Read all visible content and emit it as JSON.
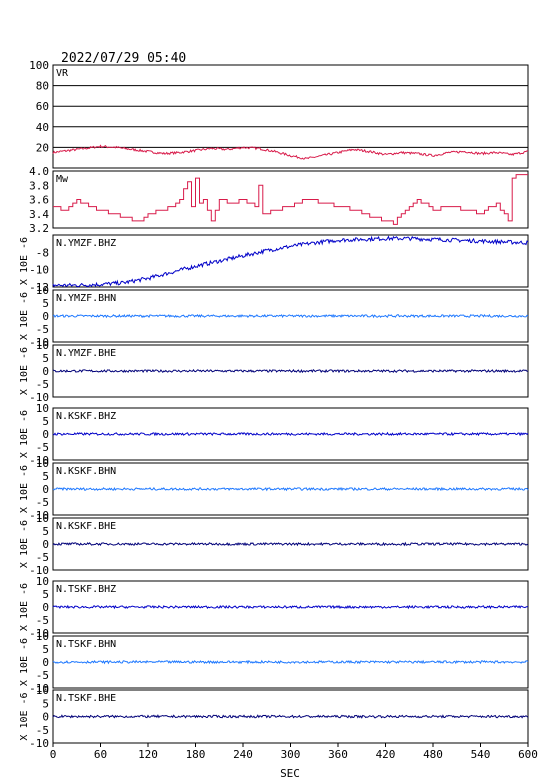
{
  "header": {
    "datetime": "2022/07/29 05:40"
  },
  "colors": {
    "vr": "#d81b4a",
    "mw": "#d81b4a",
    "bhz": "#0000c8",
    "bhn": "#1e78ff",
    "bhe": "#000078",
    "grid": "#000000"
  },
  "chart_data": {
    "type": "line",
    "x_axis": {
      "label": "SEC",
      "range": [
        0,
        600
      ],
      "ticks": [
        "0",
        "60",
        "120",
        "180",
        "240",
        "300",
        "360",
        "420",
        "480",
        "540",
        "600"
      ]
    },
    "panels": [
      {
        "id": "vr",
        "label": "VR",
        "color_key": "vr",
        "ylim": [
          0,
          100
        ],
        "ticks": [
          "100",
          "80",
          "60",
          "40",
          "20"
        ],
        "tick_values": [
          100,
          80,
          60,
          40,
          20
        ],
        "grid": true,
        "ylabel": "",
        "x": [
          0,
          20,
          40,
          60,
          80,
          100,
          120,
          140,
          160,
          180,
          200,
          220,
          240,
          260,
          280,
          300,
          320,
          340,
          360,
          380,
          400,
          420,
          440,
          460,
          480,
          500,
          520,
          540,
          560,
          580,
          600
        ],
        "y": [
          15,
          17,
          19,
          21,
          20,
          18,
          16,
          14,
          15,
          17,
          19,
          18,
          20,
          19,
          16,
          12,
          9,
          12,
          15,
          18,
          16,
          13,
          15,
          14,
          12,
          15,
          16,
          14,
          15,
          13,
          16
        ]
      },
      {
        "id": "mw",
        "label": "Mw",
        "color_key": "mw",
        "ylim": [
          3.2,
          4.0
        ],
        "ticks": [
          "4.0",
          "3.8",
          "3.6",
          "3.4",
          "3.2"
        ],
        "tick_values": [
          4.0,
          3.8,
          3.6,
          3.4,
          3.2
        ],
        "grid": false,
        "ylabel": "",
        "x": [
          0,
          15,
          30,
          45,
          60,
          75,
          90,
          100,
          110,
          120,
          135,
          150,
          160,
          170,
          175,
          180,
          185,
          190,
          200,
          210,
          225,
          240,
          255,
          260,
          265,
          280,
          300,
          320,
          340,
          360,
          380,
          400,
          420,
          430,
          440,
          450,
          460,
          480,
          500,
          520,
          540,
          560,
          575,
          580,
          590,
          600
        ],
        "y": [
          3.5,
          3.45,
          3.6,
          3.5,
          3.45,
          3.4,
          3.35,
          3.3,
          3.3,
          3.4,
          3.45,
          3.5,
          3.6,
          3.85,
          3.5,
          3.9,
          3.55,
          3.6,
          3.3,
          3.6,
          3.55,
          3.6,
          3.5,
          3.8,
          3.4,
          3.45,
          3.5,
          3.6,
          3.55,
          3.5,
          3.45,
          3.35,
          3.3,
          3.25,
          3.4,
          3.5,
          3.6,
          3.45,
          3.5,
          3.45,
          3.4,
          3.55,
          3.3,
          3.9,
          3.95,
          3.95
        ]
      },
      {
        "id": "ymzf-bhz",
        "label": "N.YMZF.BHZ",
        "color_key": "bhz",
        "ylim": [
          -12,
          -6
        ],
        "ticks": [
          "-8",
          "-10",
          "-12"
        ],
        "tick_values": [
          -8,
          -10,
          -12
        ],
        "grid": false,
        "ylabel": "X 10E -6",
        "x": [
          0,
          30,
          60,
          90,
          120,
          150,
          180,
          210,
          240,
          270,
          300,
          330,
          360,
          390,
          420,
          450,
          480,
          510,
          540,
          570,
          600
        ],
        "y": [
          -11.8,
          -11.8,
          -11.7,
          -11.5,
          -11.0,
          -10.3,
          -9.6,
          -9.0,
          -8.4,
          -7.8,
          -7.3,
          -6.9,
          -6.6,
          -6.5,
          -6.4,
          -6.4,
          -6.5,
          -6.6,
          -6.7,
          -6.8,
          -6.9
        ]
      },
      {
        "id": "ymzf-bhn",
        "label": "N.YMZF.BHN",
        "color_key": "bhn",
        "ylim": [
          -10,
          10
        ],
        "ticks": [
          "10",
          "5",
          "0",
          "-5",
          "-10"
        ],
        "tick_values": [
          10,
          5,
          0,
          -5,
          -10
        ],
        "grid": false,
        "ylabel": "X 10E -6",
        "x": [
          0,
          600
        ],
        "y": [
          0,
          0
        ]
      },
      {
        "id": "ymzf-bhe",
        "label": "N.YMZF.BHE",
        "color_key": "bhe",
        "ylim": [
          -10,
          10
        ],
        "ticks": [
          "10",
          "5",
          "0",
          "-5",
          "-10"
        ],
        "tick_values": [
          10,
          5,
          0,
          -5,
          -10
        ],
        "grid": false,
        "ylabel": "X 10E -6",
        "x": [
          0,
          600
        ],
        "y": [
          0,
          0
        ]
      },
      {
        "id": "kskf-bhz",
        "label": "N.KSKF.BHZ",
        "color_key": "bhz",
        "ylim": [
          -10,
          10
        ],
        "ticks": [
          "10",
          "5",
          "0",
          "-5",
          "-10"
        ],
        "tick_values": [
          10,
          5,
          0,
          -5,
          -10
        ],
        "grid": false,
        "ylabel": "X 10E -6",
        "x": [
          0,
          600
        ],
        "y": [
          0,
          0
        ]
      },
      {
        "id": "kskf-bhn",
        "label": "N.KSKF.BHN",
        "color_key": "bhn",
        "ylim": [
          -10,
          10
        ],
        "ticks": [
          "10",
          "5",
          "0",
          "-5",
          "-10"
        ],
        "tick_values": [
          10,
          5,
          0,
          -5,
          -10
        ],
        "grid": false,
        "ylabel": "X 10E -6",
        "x": [
          0,
          600
        ],
        "y": [
          0,
          0
        ]
      },
      {
        "id": "kskf-bhe",
        "label": "N.KSKF.BHE",
        "color_key": "bhe",
        "ylim": [
          -10,
          10
        ],
        "ticks": [
          "10",
          "5",
          "0",
          "-5",
          "-10"
        ],
        "tick_values": [
          10,
          5,
          0,
          -5,
          -10
        ],
        "grid": false,
        "ylabel": "X 10E -6",
        "x": [
          0,
          600
        ],
        "y": [
          0,
          0
        ]
      },
      {
        "id": "tskf-bhz",
        "label": "N.TSKF.BHZ",
        "color_key": "bhz",
        "ylim": [
          -10,
          10
        ],
        "ticks": [
          "10",
          "5",
          "0",
          "-5",
          "-10"
        ],
        "tick_values": [
          10,
          5,
          0,
          -5,
          -10
        ],
        "grid": false,
        "ylabel": "X 10E -6",
        "x": [
          0,
          600
        ],
        "y": [
          0,
          0
        ]
      },
      {
        "id": "tskf-bhn",
        "label": "N.TSKF.BHN",
        "color_key": "bhn",
        "ylim": [
          -10,
          10
        ],
        "ticks": [
          "10",
          "5",
          "0",
          "-5",
          "-10"
        ],
        "tick_values": [
          10,
          5,
          0,
          -5,
          -10
        ],
        "grid": false,
        "ylabel": "X 10E -6",
        "x": [
          0,
          600
        ],
        "y": [
          0,
          0
        ]
      },
      {
        "id": "tskf-bhe",
        "label": "N.TSKF.BHE",
        "color_key": "bhe",
        "ylim": [
          -10,
          10
        ],
        "ticks": [
          "10",
          "5",
          "0",
          "-5",
          "-10"
        ],
        "tick_values": [
          10,
          5,
          0,
          -5,
          -10
        ],
        "grid": false,
        "ylabel": "X 10E -6",
        "x": [
          0,
          600
        ],
        "y": [
          0,
          0
        ]
      }
    ]
  }
}
